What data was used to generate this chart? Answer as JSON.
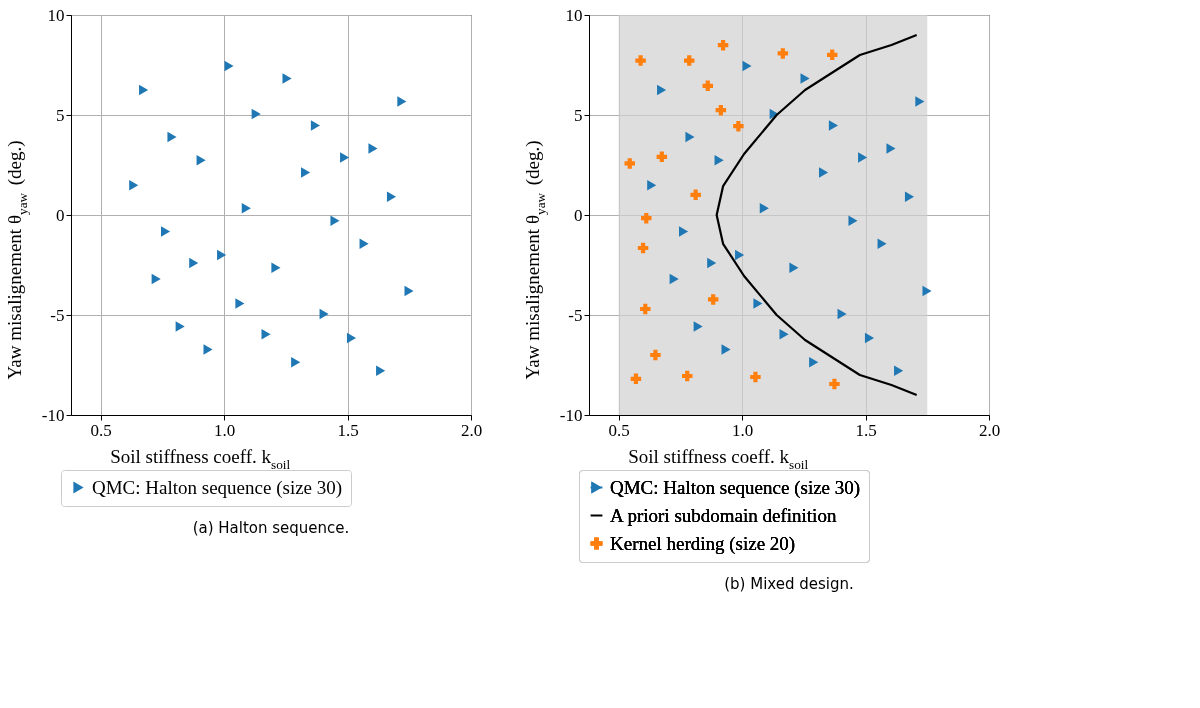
{
  "chart_data": [
    {
      "type": "scatter",
      "xlabel": "Soil stiffness coeff. k$_{soil}$",
      "ylabel": "Yaw misalignement θ$_{yaw}$ (deg.)",
      "xlim": [
        0.38,
        2.0
      ],
      "ylim": [
        -10,
        10
      ],
      "xticks": [
        {
          "value": 0.5,
          "label": "0.5"
        },
        {
          "value": 1,
          "label": "1.0"
        },
        {
          "value": 1.5,
          "label": "1.5"
        },
        {
          "value": 2,
          "label": "2.0"
        }
      ],
      "yticks": [
        -10,
        -5,
        0,
        5,
        10
      ],
      "grid": true,
      "legend": "bottom",
      "annotations": [
        "(a) Halton sequence."
      ],
      "series": [
        {
          "name": "QMC: Halton sequence (size 30)",
          "color": "#1f77b4",
          "marker": "triangle",
          "x": [
            0.674,
            1.02,
            1.255,
            0.789,
            1.13,
            1.37,
            1.72,
            0.634,
            0.907,
            1.33,
            1.488,
            1.603,
            1.678,
            1.09,
            1.449,
            1.567,
            0.763,
            0.99,
            0.877,
            0.725,
            1.21,
            1.749,
            1.064,
            1.405,
            0.822,
            1.17,
            1.516,
            0.935,
            1.29,
            1.634
          ],
          "values": [
            6.25,
            7.45,
            6.83,
            3.9,
            5.05,
            4.47,
            5.67,
            1.49,
            2.74,
            2.12,
            2.88,
            3.32,
            0.91,
            0.34,
            -0.29,
            -1.44,
            -0.82,
            -2.0,
            -2.4,
            -3.2,
            -2.64,
            -3.8,
            -4.42,
            -4.95,
            -5.58,
            -5.96,
            -6.15,
            -6.73,
            -7.36,
            -7.79
          ]
        }
      ]
    },
    {
      "type": "scatter",
      "xlabel": "Soil stiffness coeff. k$_{soil}$",
      "ylabel": "Yaw misalignement θ$_{yaw}$ (deg.)",
      "xlim": [
        0.38,
        2.0
      ],
      "ylim": [
        -10,
        10
      ],
      "xticks": [
        {
          "value": 0.5,
          "label": "0.5"
        },
        {
          "value": 1,
          "label": "1.0"
        },
        {
          "value": 1.5,
          "label": "1.5"
        },
        {
          "value": 2,
          "label": "2.0"
        }
      ],
      "yticks": [
        -10,
        -5,
        0,
        5,
        10
      ],
      "grid": true,
      "legend": "bottom",
      "annotations": [
        "(b) Mixed design."
      ],
      "bands": [
        {
          "axis": "x",
          "from": 0.5,
          "to": 1.75,
          "color": "#d0d0d0"
        }
      ],
      "series": [
        {
          "name": "QMC: Halton sequence (size 30)",
          "color": "#1f77b4",
          "marker": "triangle",
          "x": [
            0.674,
            1.02,
            1.255,
            0.789,
            1.13,
            1.37,
            1.72,
            0.634,
            0.907,
            1.33,
            1.488,
            1.603,
            1.678,
            1.09,
            1.449,
            1.567,
            0.763,
            0.99,
            0.877,
            0.725,
            1.21,
            1.749,
            1.064,
            1.405,
            0.822,
            1.17,
            1.516,
            0.935,
            1.29,
            1.634
          ],
          "values": [
            6.25,
            7.45,
            6.83,
            3.9,
            5.05,
            4.47,
            5.67,
            1.49,
            2.74,
            2.12,
            2.88,
            3.32,
            0.91,
            0.34,
            -0.29,
            -1.44,
            -0.82,
            -2.0,
            -2.4,
            -3.2,
            -2.64,
            -3.8,
            -4.42,
            -4.95,
            -5.58,
            -5.96,
            -6.15,
            -6.73,
            -7.36,
            -7.79
          ]
        },
        {
          "name": "A priori subdomain definition",
          "type": "line",
          "color": "#000000",
          "marker": "none",
          "line_style": "solid",
          "x": [
            1.707,
            1.605,
            1.477,
            1.377,
            1.255,
            1.14,
            1.008,
            0.923,
            0.897,
            0.923,
            1.008,
            1.14,
            1.255,
            1.377,
            1.477,
            1.605,
            1.707
          ],
          "values": [
            9.0,
            8.5,
            8.0,
            7.21,
            6.25,
            5.0,
            3.05,
            1.44,
            0,
            -1.44,
            -3.05,
            -5.0,
            -6.25,
            -7.21,
            -8.0,
            -8.5,
            -9.0
          ]
        },
        {
          "name": "Kernel herding (size 20)",
          "color": "#ff7f0e",
          "marker": "cross",
          "x": [
            0.923,
            0.589,
            0.786,
            1.165,
            1.365,
            0.861,
            0.914,
            0.985,
            0.545,
            0.675,
            0.812,
            0.612,
            0.599,
            0.883,
            0.608,
            0.649,
            0.57,
            0.778,
            1.054,
            1.374
          ],
          "values": [
            8.49,
            7.72,
            7.72,
            8.08,
            8.01,
            6.46,
            5.24,
            4.44,
            2.58,
            2.91,
            1.01,
            -0.16,
            -1.65,
            -4.22,
            -4.7,
            -7.0,
            -8.19,
            -8.05,
            -8.1,
            -8.45
          ]
        }
      ]
    }
  ]
}
